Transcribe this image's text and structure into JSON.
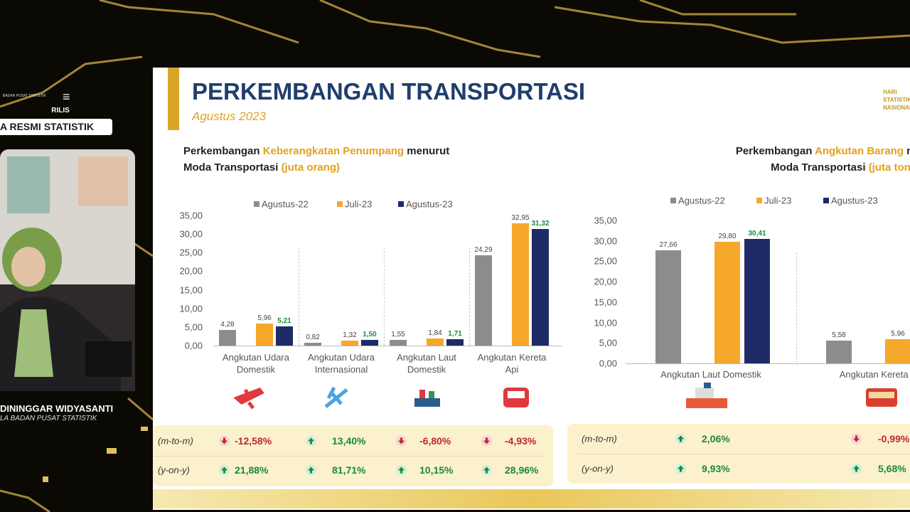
{
  "broadcast": {
    "logo_text": "BADAN PUSAT STATISTIK",
    "release": "RILIS",
    "banner": "A RESMI STATISTIK",
    "speaker_name": "DININGGAR WIDYASANTI",
    "speaker_role": "LA BADAN PUSAT STATISTIK"
  },
  "slide": {
    "title": "PERKEMBANGAN TRANSPORTASI",
    "subtitle": "Agustus 2023",
    "corner": [
      "HARI",
      "STATISTIK",
      "NASIONAL"
    ]
  },
  "chart_data": [
    {
      "type": "bar",
      "title": [
        "Perkembangan",
        "Keberangkatan Penumpang",
        "menurut",
        "Moda Transportasi",
        "(juta orang)"
      ],
      "categories": [
        "Angkutan Udara Domestik",
        "Angkutan Udara Internasional",
        "Angkutan Laut Domestik",
        "Angkutan Kereta Api"
      ],
      "series": [
        {
          "name": "Agustus-22",
          "color": "#8c8c8c",
          "label_color": "#444444",
          "values": [
            4.28,
            0.82,
            1.55,
            24.29
          ],
          "value_labels": [
            "4,28",
            "0,82",
            "1,55",
            "24,29"
          ]
        },
        {
          "name": "Juli-23",
          "color": "#f5a82a",
          "label_color": "#444444",
          "values": [
            5.96,
            1.32,
            1.84,
            32.95
          ],
          "value_labels": [
            "5,96",
            "1,32",
            "1,84",
            "32,95"
          ]
        },
        {
          "name": "Agustus-23",
          "color": "#1f2b66",
          "label_color": "#1a8a3a",
          "values": [
            5.21,
            1.5,
            1.71,
            31.32
          ],
          "value_labels": [
            "5,21",
            "1,50",
            "1,71",
            "31,32"
          ]
        }
      ],
      "ylim": [
        0,
        35
      ],
      "yticks": [
        {
          "value": 0,
          "label": "0,00"
        },
        {
          "value": 5,
          "label": "5,00"
        },
        {
          "value": 10,
          "label": "10,00"
        },
        {
          "value": 15,
          "label": "15,00"
        },
        {
          "value": 20,
          "label": "20,00"
        },
        {
          "value": 25,
          "label": "25,00"
        },
        {
          "value": 30,
          "label": "30,00"
        },
        {
          "value": 35,
          "label": "35,00"
        }
      ],
      "grid": false
    },
    {
      "type": "bar",
      "title": [
        "Perkembangan",
        "Angkutan Barang",
        "menurut",
        "Moda Transportasi",
        "(juta ton)"
      ],
      "categories": [
        "Angkutan Laut Domestik",
        "Angkutan Kereta Api"
      ],
      "series": [
        {
          "name": "Agustus-22",
          "color": "#8c8c8c",
          "label_color": "#444444",
          "values": [
            27.66,
            5.58
          ],
          "value_labels": [
            "27,66",
            "5,58"
          ]
        },
        {
          "name": "Juli-23",
          "color": "#f5a82a",
          "label_color": "#444444",
          "values": [
            29.8,
            5.96
          ],
          "value_labels": [
            "29,80",
            "5,96"
          ]
        },
        {
          "name": "Agustus-23",
          "color": "#1f2b66",
          "label_color": "#1a8a3a",
          "values": [
            30.41,
            null
          ],
          "value_labels": [
            "30,41",
            null
          ]
        }
      ],
      "ylim": [
        0,
        35
      ],
      "yticks": [
        {
          "value": 0,
          "label": "0,00"
        },
        {
          "value": 5,
          "label": "5,00"
        },
        {
          "value": 10,
          "label": "10,00"
        },
        {
          "value": 15,
          "label": "15,00"
        },
        {
          "value": 20,
          "label": "20,00"
        },
        {
          "value": 25,
          "label": "25,00"
        },
        {
          "value": 30,
          "label": "30,00"
        },
        {
          "value": 35,
          "label": "35,00"
        }
      ],
      "grid": false
    }
  ],
  "indicators": [
    {
      "rows": [
        {
          "label": "(m-to-m)",
          "values": [
            "-12,58%",
            "13,40%",
            "-6,80%",
            "-4,93%"
          ]
        },
        {
          "label": "(y-on-y)",
          "values": [
            "21,88%",
            "81,71%",
            "10,15%",
            "28,96%"
          ]
        }
      ]
    },
    {
      "rows": [
        {
          "label": "(m-to-m)",
          "values": [
            "2,06%",
            "-0,99%"
          ]
        },
        {
          "label": "(y-on-y)",
          "values": [
            "9,93%",
            "5,68%"
          ]
        }
      ]
    }
  ]
}
